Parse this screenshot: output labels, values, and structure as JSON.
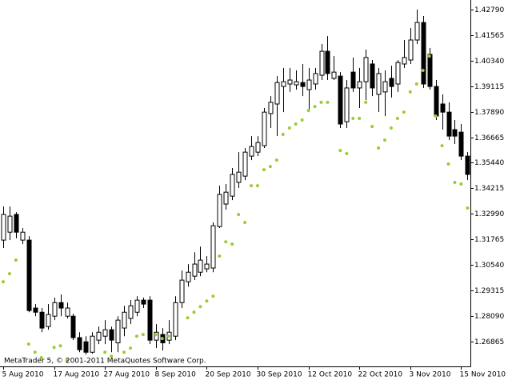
{
  "chart_data": {
    "type": "candlestick",
    "watermark": "MetaTrader 5, © 2001-2011 MetaQuotes Software Corp.",
    "categories": [
      "5 Aug 2010",
      null,
      null,
      null,
      null,
      null,
      null,
      null,
      "17 Aug 2010",
      null,
      null,
      null,
      null,
      null,
      null,
      null,
      "27 Aug 2010",
      null,
      null,
      null,
      null,
      null,
      null,
      null,
      "8 Sep 2010",
      null,
      null,
      null,
      null,
      null,
      null,
      null,
      "20 Sep 2010",
      null,
      null,
      null,
      null,
      null,
      null,
      null,
      "30 Sep 2010",
      null,
      null,
      null,
      null,
      null,
      null,
      null,
      "12 Oct 2010",
      null,
      null,
      null,
      null,
      null,
      null,
      null,
      "22 Oct 2010",
      null,
      null,
      null,
      null,
      null,
      null,
      null,
      "3 Nov 2010",
      null,
      null,
      null,
      null,
      null,
      null,
      null,
      "15 Nov 2010",
      null
    ],
    "open": [
      1.3173,
      1.3211,
      1.3296,
      1.3173,
      1.3173,
      1.2847,
      1.2827,
      1.2758,
      1.2808,
      1.2873,
      1.2808,
      1.2808,
      1.2705,
      1.2685,
      1.2635,
      1.2693,
      1.2712,
      1.2743,
      1.268,
      1.2751,
      1.2797,
      1.2827,
      1.2885,
      1.2885,
      1.2693,
      1.272,
      1.2693,
      1.2712,
      1.2873,
      1.2973,
      1.3,
      1.3019,
      1.3035,
      1.3039,
      1.3238,
      1.3346,
      1.3384,
      1.345,
      1.348,
      1.3576,
      1.3595,
      1.3626,
      1.378,
      1.3826,
      1.391,
      1.3922,
      1.3918,
      1.3929,
      1.3895,
      1.3922,
      1.3964,
      1.4079,
      1.3949,
      1.396,
      1.3741,
      1.3979,
      1.3903,
      1.3933,
      1.4018,
      1.3872,
      1.3884,
      1.3949,
      1.3922,
      1.4018,
      1.4037,
      1.4133,
      1.4217,
      1.4064,
      1.391,
      1.3826,
      1.3787,
      1.3703,
      1.3691,
      1.3576
    ],
    "high": [
      1.3334,
      1.3334,
      1.3307,
      1.3231,
      1.3192,
      1.2866,
      1.2847,
      1.2866,
      1.2897,
      1.2912,
      1.2873,
      1.282,
      1.2731,
      1.2712,
      1.2731,
      1.2758,
      1.2789,
      1.2758,
      1.2808,
      1.2858,
      1.2885,
      1.2904,
      1.2897,
      1.2904,
      1.277,
      1.2751,
      1.2789,
      1.2904,
      1.3027,
      1.3058,
      1.3115,
      1.3142,
      1.3096,
      1.3258,
      1.3434,
      1.3442,
      1.3519,
      1.3595,
      1.3615,
      1.3672,
      1.3672,
      1.3807,
      1.3864,
      1.396,
      1.3999,
      1.3999,
      1.3987,
      1.4018,
      1.3999,
      1.3999,
      1.4114,
      1.4152,
      1.4056,
      1.3979,
      1.3941,
      1.4049,
      1.3999,
      1.4087,
      1.4037,
      1.3999,
      1.3987,
      1.401,
      1.4037,
      1.4133,
      1.4191,
      1.4279,
      1.4248,
      1.4095,
      1.3941,
      1.3872,
      1.3834,
      1.3749,
      1.373,
      1.3595
    ],
    "low": [
      1.3135,
      1.3173,
      1.3181,
      1.3154,
      1.2827,
      1.2808,
      1.2731,
      1.2743,
      1.2789,
      1.2808,
      1.2797,
      1.2693,
      1.2635,
      1.2624,
      1.2628,
      1.2674,
      1.2674,
      1.2635,
      1.2635,
      1.2712,
      1.277,
      1.2808,
      1.2847,
      1.2674,
      1.2655,
      1.2643,
      1.2674,
      1.2693,
      1.2847,
      1.295,
      1.2981,
      1.3,
      1.3019,
      1.3019,
      1.3231,
      1.3319,
      1.3365,
      1.3423,
      1.3461,
      1.3557,
      1.3576,
      1.3615,
      1.3711,
      1.3672,
      1.3787,
      1.3884,
      1.3895,
      1.3864,
      1.3787,
      1.3895,
      1.3941,
      1.3941,
      1.3941,
      1.3711,
      1.3711,
      1.3884,
      1.3807,
      1.3845,
      1.3864,
      1.3787,
      1.3768,
      1.3857,
      1.3884,
      1.3999,
      1.4018,
      1.4114,
      1.3903,
      1.3895,
      1.3749,
      1.3703,
      1.3653,
      1.3634,
      1.3557,
      1.3461
    ],
    "close": [
      1.3296,
      1.3288,
      1.3211,
      1.3211,
      1.2835,
      1.2827,
      1.2751,
      1.2816,
      1.2873,
      1.2847,
      1.2847,
      1.2705,
      1.2647,
      1.2635,
      1.2712,
      1.2731,
      1.2743,
      1.2693,
      1.2789,
      1.2827,
      1.2858,
      1.2885,
      1.2866,
      1.2693,
      1.2731,
      1.268,
      1.2731,
      1.2873,
      1.2981,
      1.3019,
      1.3058,
      1.3077,
      1.3058,
      1.3242,
      1.3392,
      1.3403,
      1.3488,
      1.3499,
      1.3595,
      1.3622,
      1.3641,
      1.3787,
      1.3834,
      1.3929,
      1.3933,
      1.3941,
      1.3933,
      1.391,
      1.3941,
      1.3972,
      1.4079,
      1.3972,
      1.3979,
      1.373,
      1.3903,
      1.3903,
      1.3933,
      1.4049,
      1.3903,
      1.3972,
      1.3933,
      1.391,
      1.4025,
      1.4049,
      1.4133,
      1.4217,
      1.3922,
      1.391,
      1.3768,
      1.3787,
      1.3672,
      1.3672,
      1.3576,
      1.3488
    ],
    "up_color": "#ffffff",
    "down_color": "#000000",
    "wick_color": "#000000",
    "indicator": {
      "color": "#9acd32",
      "values": [
        1.2973,
        1.3012,
        1.3077,
        null,
        1.2674,
        1.2635,
        1.2609,
        null,
        1.2658,
        1.2666,
        1.2597,
        null,
        null,
        null,
        null,
        null,
        1.2635,
        1.2616,
        null,
        1.2635,
        1.2655,
        1.2712,
        1.272,
        null,
        1.272,
        1.2701,
        1.2712,
        null,
        null,
        1.28,
        1.2827,
        1.2854,
        1.2881,
        1.2904,
        1.3096,
        1.3165,
        1.3154,
        1.3296,
        1.3258,
        1.3434,
        1.3434,
        1.3511,
        1.3526,
        1.3557,
        1.368,
        1.3711,
        1.373,
        1.3749,
        1.3795,
        1.3814,
        1.3834,
        1.3834,
        null,
        1.3603,
        1.3588,
        1.3757,
        1.3757,
        1.3834,
        1.3718,
        1.3615,
        1.3653,
        1.3711,
        1.3757,
        1.3787,
        1.3884,
        1.3922,
        1.3987,
        1.4056,
        1.3768,
        1.3626,
        1.3538,
        1.345,
        1.3442,
        1.3327
      ]
    },
    "ylim": [
      1.2567,
      1.4325
    ],
    "yticks": [
      {
        "value": 1.4279,
        "label": "1.42790"
      },
      {
        "value": 1.41565,
        "label": "1.41565"
      },
      {
        "value": 1.4034,
        "label": "1.40340"
      },
      {
        "value": 1.39115,
        "label": "1.39115"
      },
      {
        "value": 1.3789,
        "label": "1.37890"
      },
      {
        "value": 1.36665,
        "label": "1.36665"
      },
      {
        "value": 1.3544,
        "label": "1.35440"
      },
      {
        "value": 1.34215,
        "label": "1.34215"
      },
      {
        "value": 1.3299,
        "label": "1.32990"
      },
      {
        "value": 1.31765,
        "label": "1.31765"
      },
      {
        "value": 1.3054,
        "label": "1.30540"
      },
      {
        "value": 1.29315,
        "label": "1.29315"
      },
      {
        "value": 1.2809,
        "label": "1.28090"
      },
      {
        "value": 1.26865,
        "label": "1.26865"
      }
    ],
    "grid": false
  }
}
